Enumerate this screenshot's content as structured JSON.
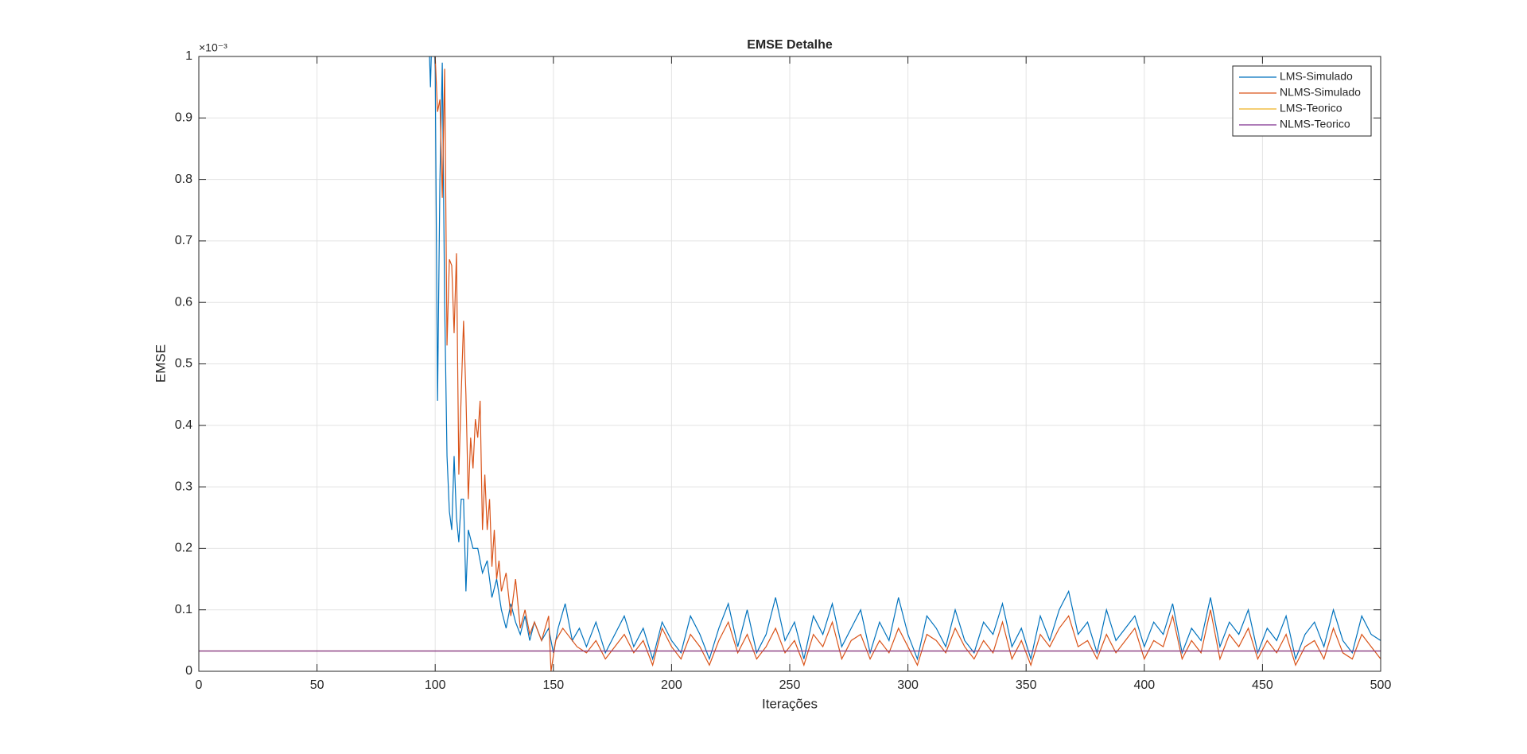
{
  "chart_data": {
    "type": "line",
    "title": "EMSE Detalhe",
    "xlabel": "Iterações",
    "ylabel": "EMSE",
    "y_exponent_label": "×10⁻³",
    "xlim": [
      0,
      500
    ],
    "ylim": [
      0,
      1
    ],
    "xticks": [
      0,
      50,
      100,
      150,
      200,
      250,
      300,
      350,
      400,
      450,
      500
    ],
    "yticks": [
      0,
      0.1,
      0.2,
      0.3,
      0.4,
      0.5,
      0.6,
      0.7,
      0.8,
      0.9,
      1
    ],
    "grid": true,
    "legend_position": "top-right",
    "series": [
      {
        "name": "LMS-Simulado",
        "color": "#0072BD",
        "x": [
          96,
          98,
          99,
          100,
          101,
          102,
          103,
          104,
          105,
          106,
          107,
          108,
          109,
          110,
          111,
          112,
          113,
          114,
          116,
          118,
          120,
          122,
          124,
          126,
          128,
          130,
          132,
          134,
          136,
          138,
          140,
          142,
          145,
          148,
          150,
          152,
          155,
          158,
          161,
          164,
          168,
          172,
          176,
          180,
          184,
          188,
          192,
          196,
          200,
          204,
          208,
          212,
          216,
          220,
          224,
          228,
          232,
          236,
          240,
          244,
          248,
          252,
          256,
          260,
          264,
          268,
          272,
          276,
          280,
          284,
          288,
          292,
          296,
          300,
          304,
          308,
          312,
          316,
          320,
          324,
          328,
          332,
          336,
          340,
          344,
          348,
          352,
          356,
          360,
          364,
          368,
          372,
          376,
          380,
          384,
          388,
          392,
          396,
          400,
          404,
          408,
          412,
          416,
          420,
          424,
          428,
          432,
          436,
          440,
          444,
          448,
          452,
          456,
          460,
          464,
          468,
          472,
          476,
          480,
          484,
          488,
          492,
          496,
          500
        ],
        "values": [
          1.2,
          0.95,
          1.1,
          0.98,
          0.44,
          0.8,
          0.99,
          0.6,
          0.35,
          0.26,
          0.23,
          0.35,
          0.25,
          0.21,
          0.28,
          0.28,
          0.13,
          0.23,
          0.2,
          0.2,
          0.16,
          0.18,
          0.12,
          0.15,
          0.1,
          0.07,
          0.11,
          0.08,
          0.06,
          0.09,
          0.05,
          0.08,
          0.05,
          0.07,
          0.03,
          0.07,
          0.11,
          0.05,
          0.07,
          0.04,
          0.08,
          0.03,
          0.06,
          0.09,
          0.04,
          0.07,
          0.02,
          0.08,
          0.05,
          0.03,
          0.09,
          0.06,
          0.02,
          0.07,
          0.11,
          0.04,
          0.1,
          0.03,
          0.06,
          0.12,
          0.05,
          0.08,
          0.02,
          0.09,
          0.06,
          0.11,
          0.04,
          0.07,
          0.1,
          0.03,
          0.08,
          0.05,
          0.12,
          0.06,
          0.02,
          0.09,
          0.07,
          0.04,
          0.1,
          0.05,
          0.03,
          0.08,
          0.06,
          0.11,
          0.04,
          0.07,
          0.02,
          0.09,
          0.05,
          0.1,
          0.13,
          0.06,
          0.08,
          0.03,
          0.1,
          0.05,
          0.07,
          0.09,
          0.04,
          0.08,
          0.06,
          0.11,
          0.03,
          0.07,
          0.05,
          0.12,
          0.04,
          0.08,
          0.06,
          0.1,
          0.03,
          0.07,
          0.05,
          0.09,
          0.02,
          0.06,
          0.08,
          0.04,
          0.1,
          0.05,
          0.03,
          0.09,
          0.06,
          0.05
        ]
      },
      {
        "name": "NLMS-Simulado",
        "color": "#D95319",
        "x": [
          96,
          100,
          101,
          102,
          103,
          104,
          105,
          106,
          107,
          108,
          109,
          110,
          111,
          112,
          113,
          114,
          115,
          116,
          117,
          118,
          119,
          120,
          121,
          122,
          123,
          124,
          125,
          126,
          127,
          128,
          130,
          132,
          134,
          136,
          138,
          140,
          142,
          145,
          148,
          149,
          151,
          154,
          160,
          164,
          168,
          172,
          176,
          180,
          184,
          188,
          192,
          196,
          200,
          204,
          208,
          212,
          216,
          220,
          224,
          228,
          232,
          236,
          240,
          244,
          248,
          252,
          256,
          260,
          264,
          268,
          272,
          276,
          280,
          284,
          288,
          292,
          296,
          300,
          304,
          308,
          312,
          316,
          320,
          324,
          328,
          332,
          336,
          340,
          344,
          348,
          352,
          356,
          360,
          364,
          368,
          372,
          376,
          380,
          384,
          388,
          392,
          396,
          400,
          404,
          408,
          412,
          416,
          420,
          424,
          428,
          432,
          436,
          440,
          444,
          448,
          452,
          456,
          460,
          464,
          468,
          472,
          476,
          480,
          484,
          488,
          492,
          496,
          500
        ],
        "values": [
          1.2,
          1.0,
          0.91,
          0.93,
          0.77,
          0.98,
          0.53,
          0.67,
          0.66,
          0.55,
          0.68,
          0.32,
          0.45,
          0.57,
          0.45,
          0.28,
          0.38,
          0.33,
          0.41,
          0.38,
          0.44,
          0.23,
          0.32,
          0.23,
          0.28,
          0.17,
          0.23,
          0.15,
          0.18,
          0.13,
          0.16,
          0.09,
          0.15,
          0.07,
          0.1,
          0.06,
          0.08,
          0.05,
          0.09,
          0,
          0.05,
          0.07,
          0.04,
          0.03,
          0.05,
          0.02,
          0.04,
          0.06,
          0.03,
          0.05,
          0.01,
          0.07,
          0.04,
          0.02,
          0.06,
          0.04,
          0.01,
          0.05,
          0.08,
          0.03,
          0.06,
          0.02,
          0.04,
          0.07,
          0.03,
          0.05,
          0.01,
          0.06,
          0.04,
          0.08,
          0.02,
          0.05,
          0.06,
          0.02,
          0.05,
          0.03,
          0.07,
          0.04,
          0.01,
          0.06,
          0.05,
          0.03,
          0.07,
          0.04,
          0.02,
          0.05,
          0.03,
          0.08,
          0.02,
          0.05,
          0.01,
          0.06,
          0.04,
          0.07,
          0.09,
          0.04,
          0.05,
          0.02,
          0.06,
          0.03,
          0.05,
          0.07,
          0.02,
          0.05,
          0.04,
          0.09,
          0.02,
          0.05,
          0.03,
          0.1,
          0.02,
          0.06,
          0.04,
          0.07,
          0.02,
          0.05,
          0.03,
          0.06,
          0.01,
          0.04,
          0.05,
          0.02,
          0.07,
          0.03,
          0.02,
          0.06,
          0.04,
          0.02
        ]
      },
      {
        "name": "LMS-Teorico",
        "color": "#EDB120",
        "x": [
          0,
          500
        ],
        "values": [
          0.033,
          0.033
        ]
      },
      {
        "name": "NLMS-Teorico",
        "color": "#7E2F8E",
        "x": [
          0,
          500
        ],
        "values": [
          0.033,
          0.033
        ]
      }
    ]
  }
}
